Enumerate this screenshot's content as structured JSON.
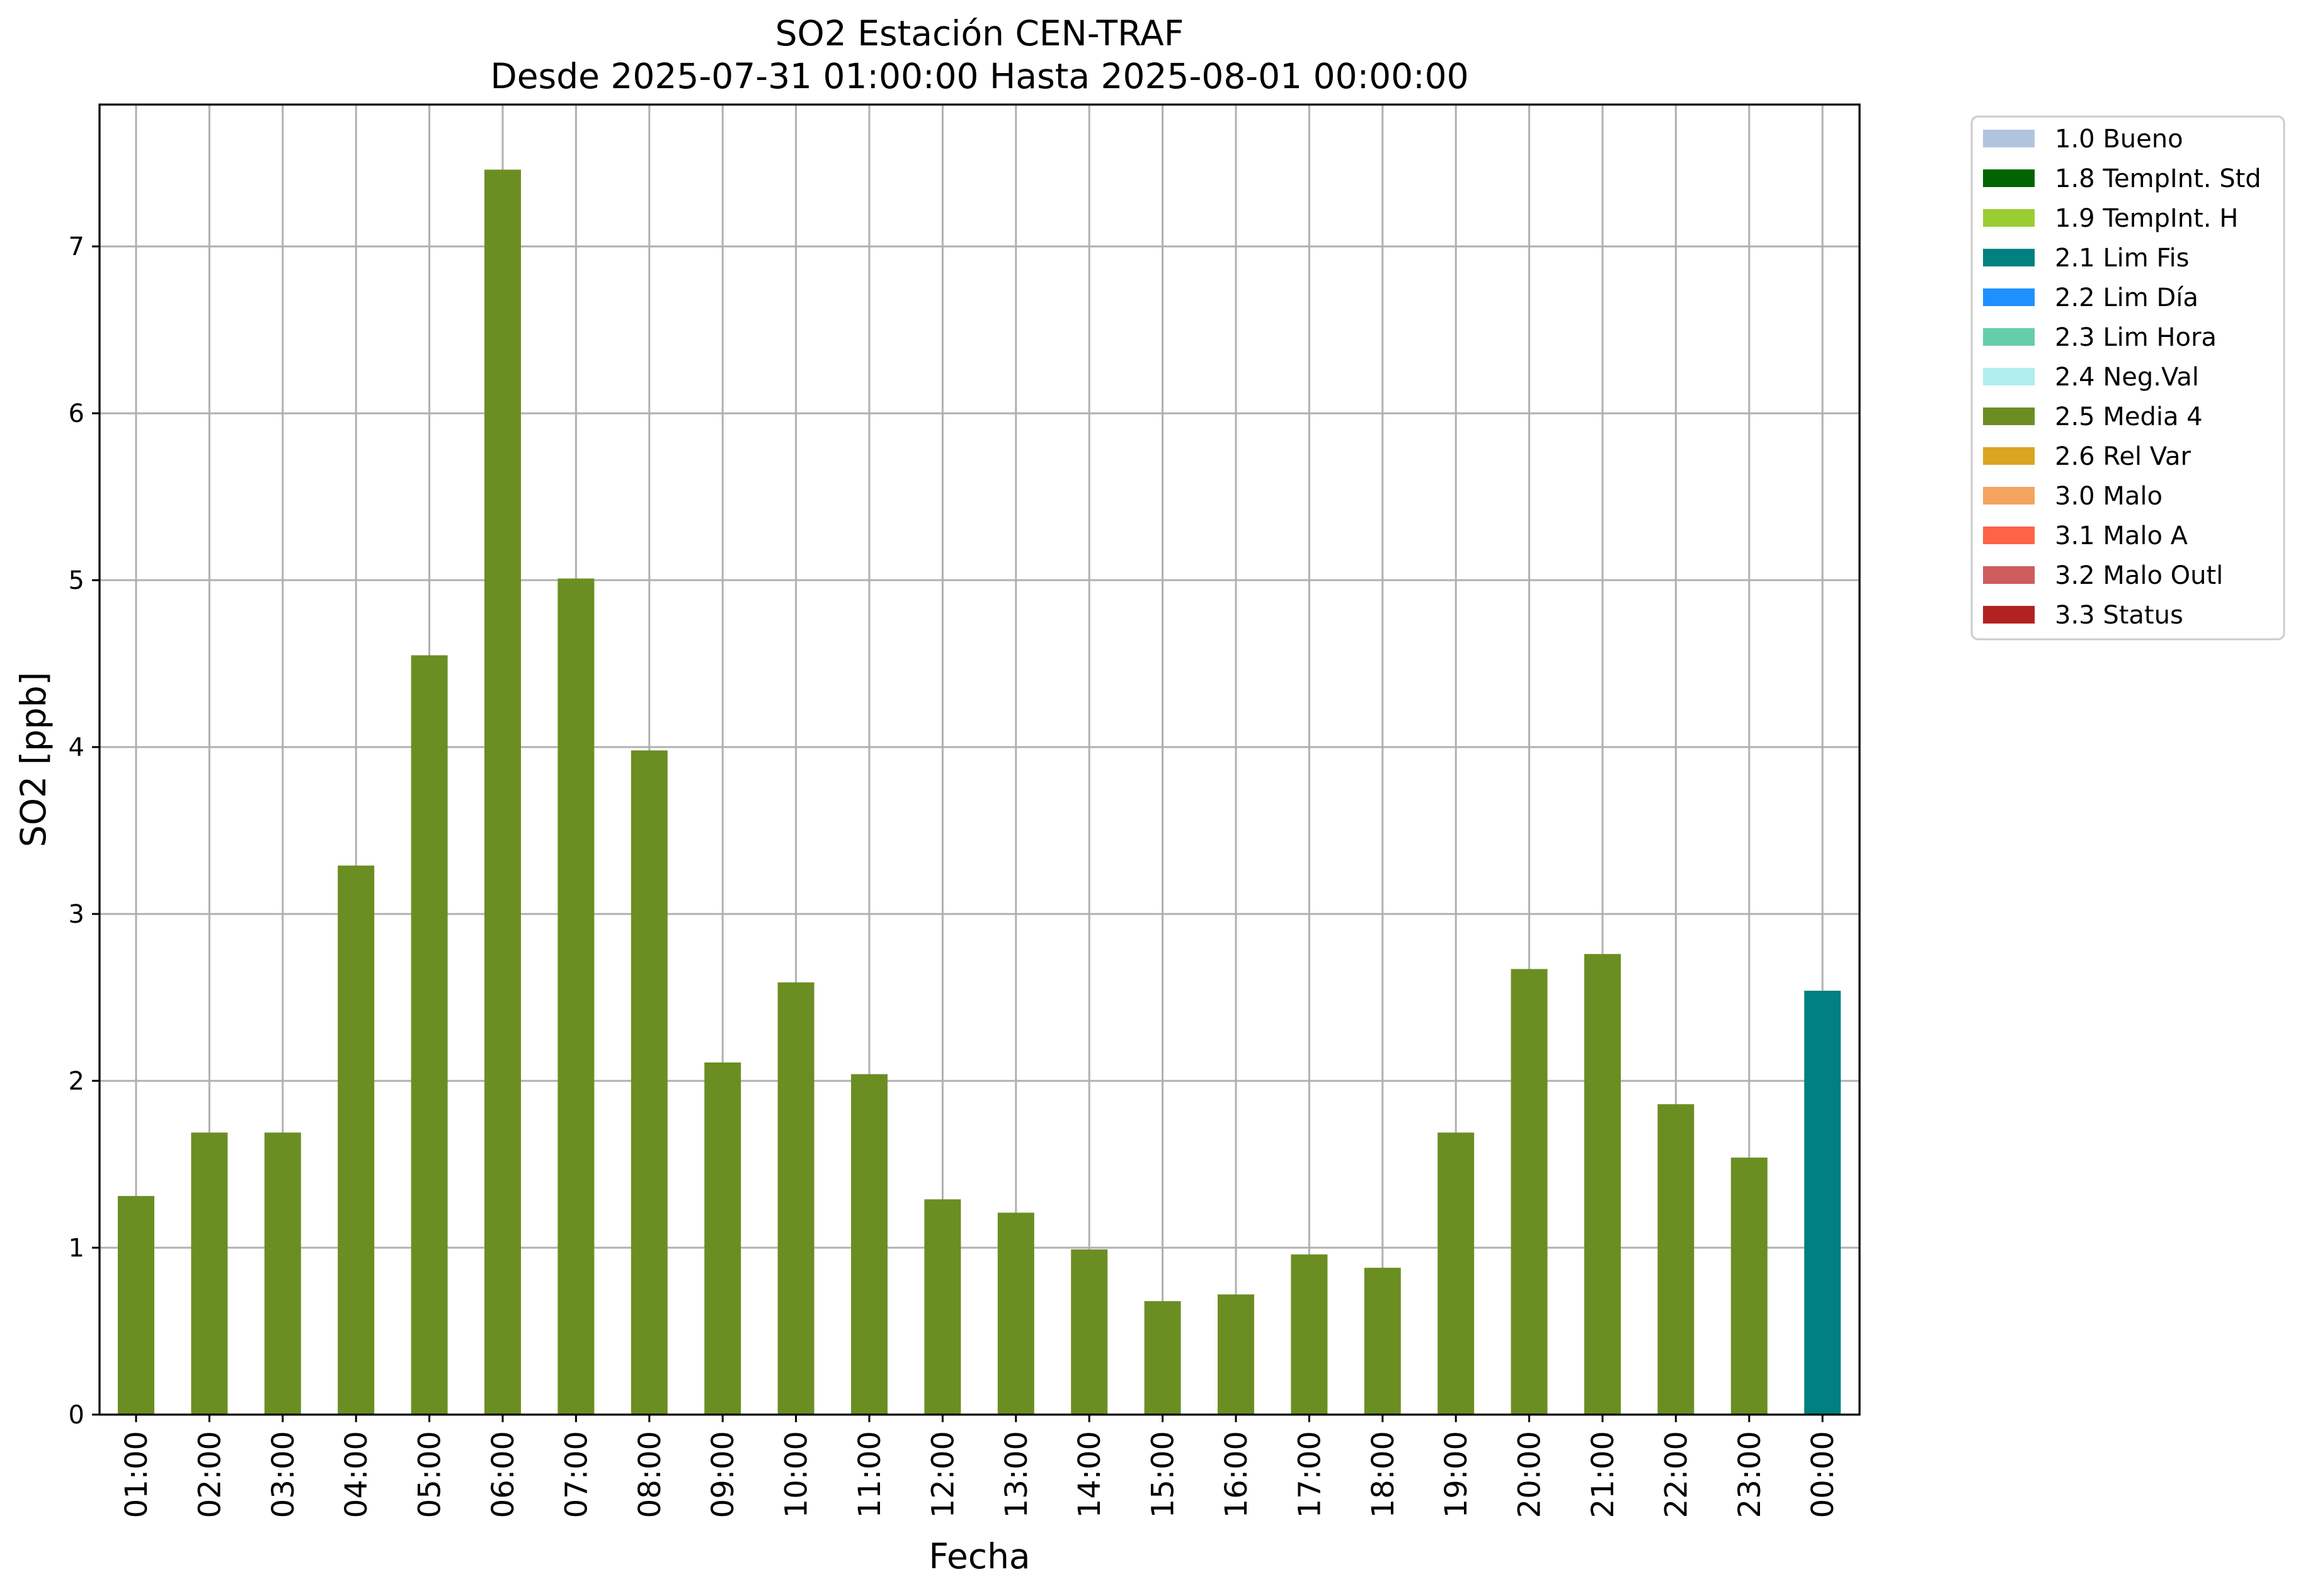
{
  "chart_data": {
    "type": "bar",
    "title": "SO2 Estación CEN-TRAF",
    "subtitle": "Desde 2025-07-31 01:00:00 Hasta 2025-08-01 00:00:00",
    "xlabel": "Fecha",
    "ylabel": "SO2 [ppb]",
    "ylim": [
      0,
      7.85
    ],
    "yticks": [
      "0",
      "1",
      "2",
      "3",
      "4",
      "5",
      "6",
      "7"
    ],
    "grid": true,
    "legend_position": "outside-top-right",
    "categories": [
      "01:00",
      "02:00",
      "03:00",
      "04:00",
      "05:00",
      "06:00",
      "07:00",
      "08:00",
      "09:00",
      "10:00",
      "11:00",
      "12:00",
      "13:00",
      "14:00",
      "15:00",
      "16:00",
      "17:00",
      "18:00",
      "19:00",
      "20:00",
      "21:00",
      "22:00",
      "23:00",
      "00:00"
    ],
    "values": [
      1.31,
      1.69,
      1.69,
      3.29,
      4.55,
      7.46,
      5.01,
      3.98,
      2.11,
      2.59,
      2.04,
      1.29,
      1.21,
      0.99,
      0.68,
      0.72,
      0.96,
      0.88,
      1.69,
      2.67,
      2.76,
      1.86,
      1.54,
      2.54
    ],
    "flags": [
      "2.5",
      "2.5",
      "2.5",
      "2.5",
      "2.5",
      "2.5",
      "2.5",
      "2.5",
      "2.5",
      "2.5",
      "2.5",
      "2.5",
      "2.5",
      "2.5",
      "2.5",
      "2.5",
      "2.5",
      "2.5",
      "2.5",
      "2.5",
      "2.5",
      "2.5",
      "2.5",
      "2.1"
    ],
    "legend": [
      {
        "code": "1.0",
        "label": "1.0 Bueno",
        "color": "#b0c4de"
      },
      {
        "code": "1.8",
        "label": "1.8 TempInt. Std",
        "color": "#006400"
      },
      {
        "code": "1.9",
        "label": "1.9 TempInt. H",
        "color": "#9acd32"
      },
      {
        "code": "2.1",
        "label": "2.1 Lim Fis",
        "color": "#008080"
      },
      {
        "code": "2.2",
        "label": "2.2 Lim Día",
        "color": "#1e90ff"
      },
      {
        "code": "2.3",
        "label": "2.3 Lim Hora",
        "color": "#66cdaa"
      },
      {
        "code": "2.4",
        "label": "2.4 Neg.Val",
        "color": "#afeeee"
      },
      {
        "code": "2.5",
        "label": "2.5 Media 4",
        "color": "#6b8e23"
      },
      {
        "code": "2.6",
        "label": "2.6 Rel Var",
        "color": "#daa520"
      },
      {
        "code": "3.0",
        "label": "3.0 Malo",
        "color": "#f4a460"
      },
      {
        "code": "3.1",
        "label": "3.1 Malo A",
        "color": "#ff6347"
      },
      {
        "code": "3.2",
        "label": "3.2 Malo Outl",
        "color": "#cd5c5c"
      },
      {
        "code": "3.3",
        "label": "3.3 Status",
        "color": "#b22222"
      }
    ]
  }
}
